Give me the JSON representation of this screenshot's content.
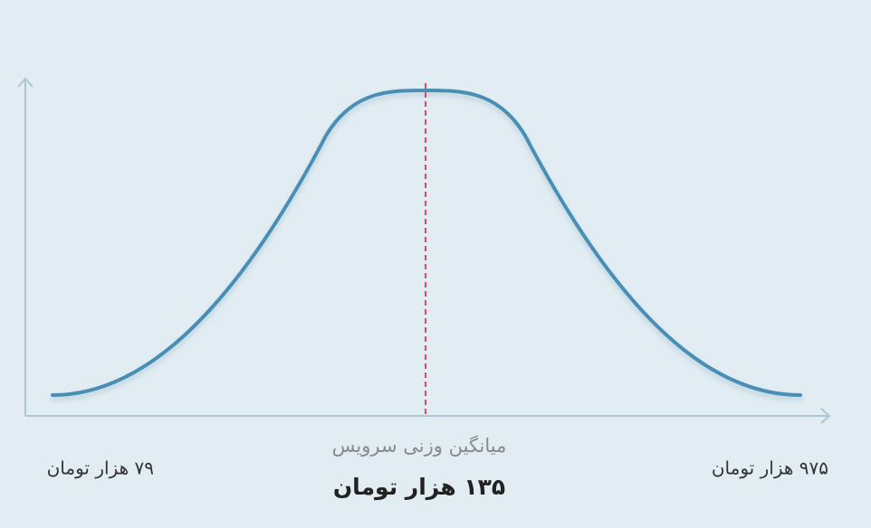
{
  "labels": {
    "min": "۷۹ هزار تومان",
    "max": "۹۷۵ هزار تومان",
    "mean_caption": "میانگین وزنی سرویس",
    "mean": "۱۳۵ هزار تومان"
  }
}
